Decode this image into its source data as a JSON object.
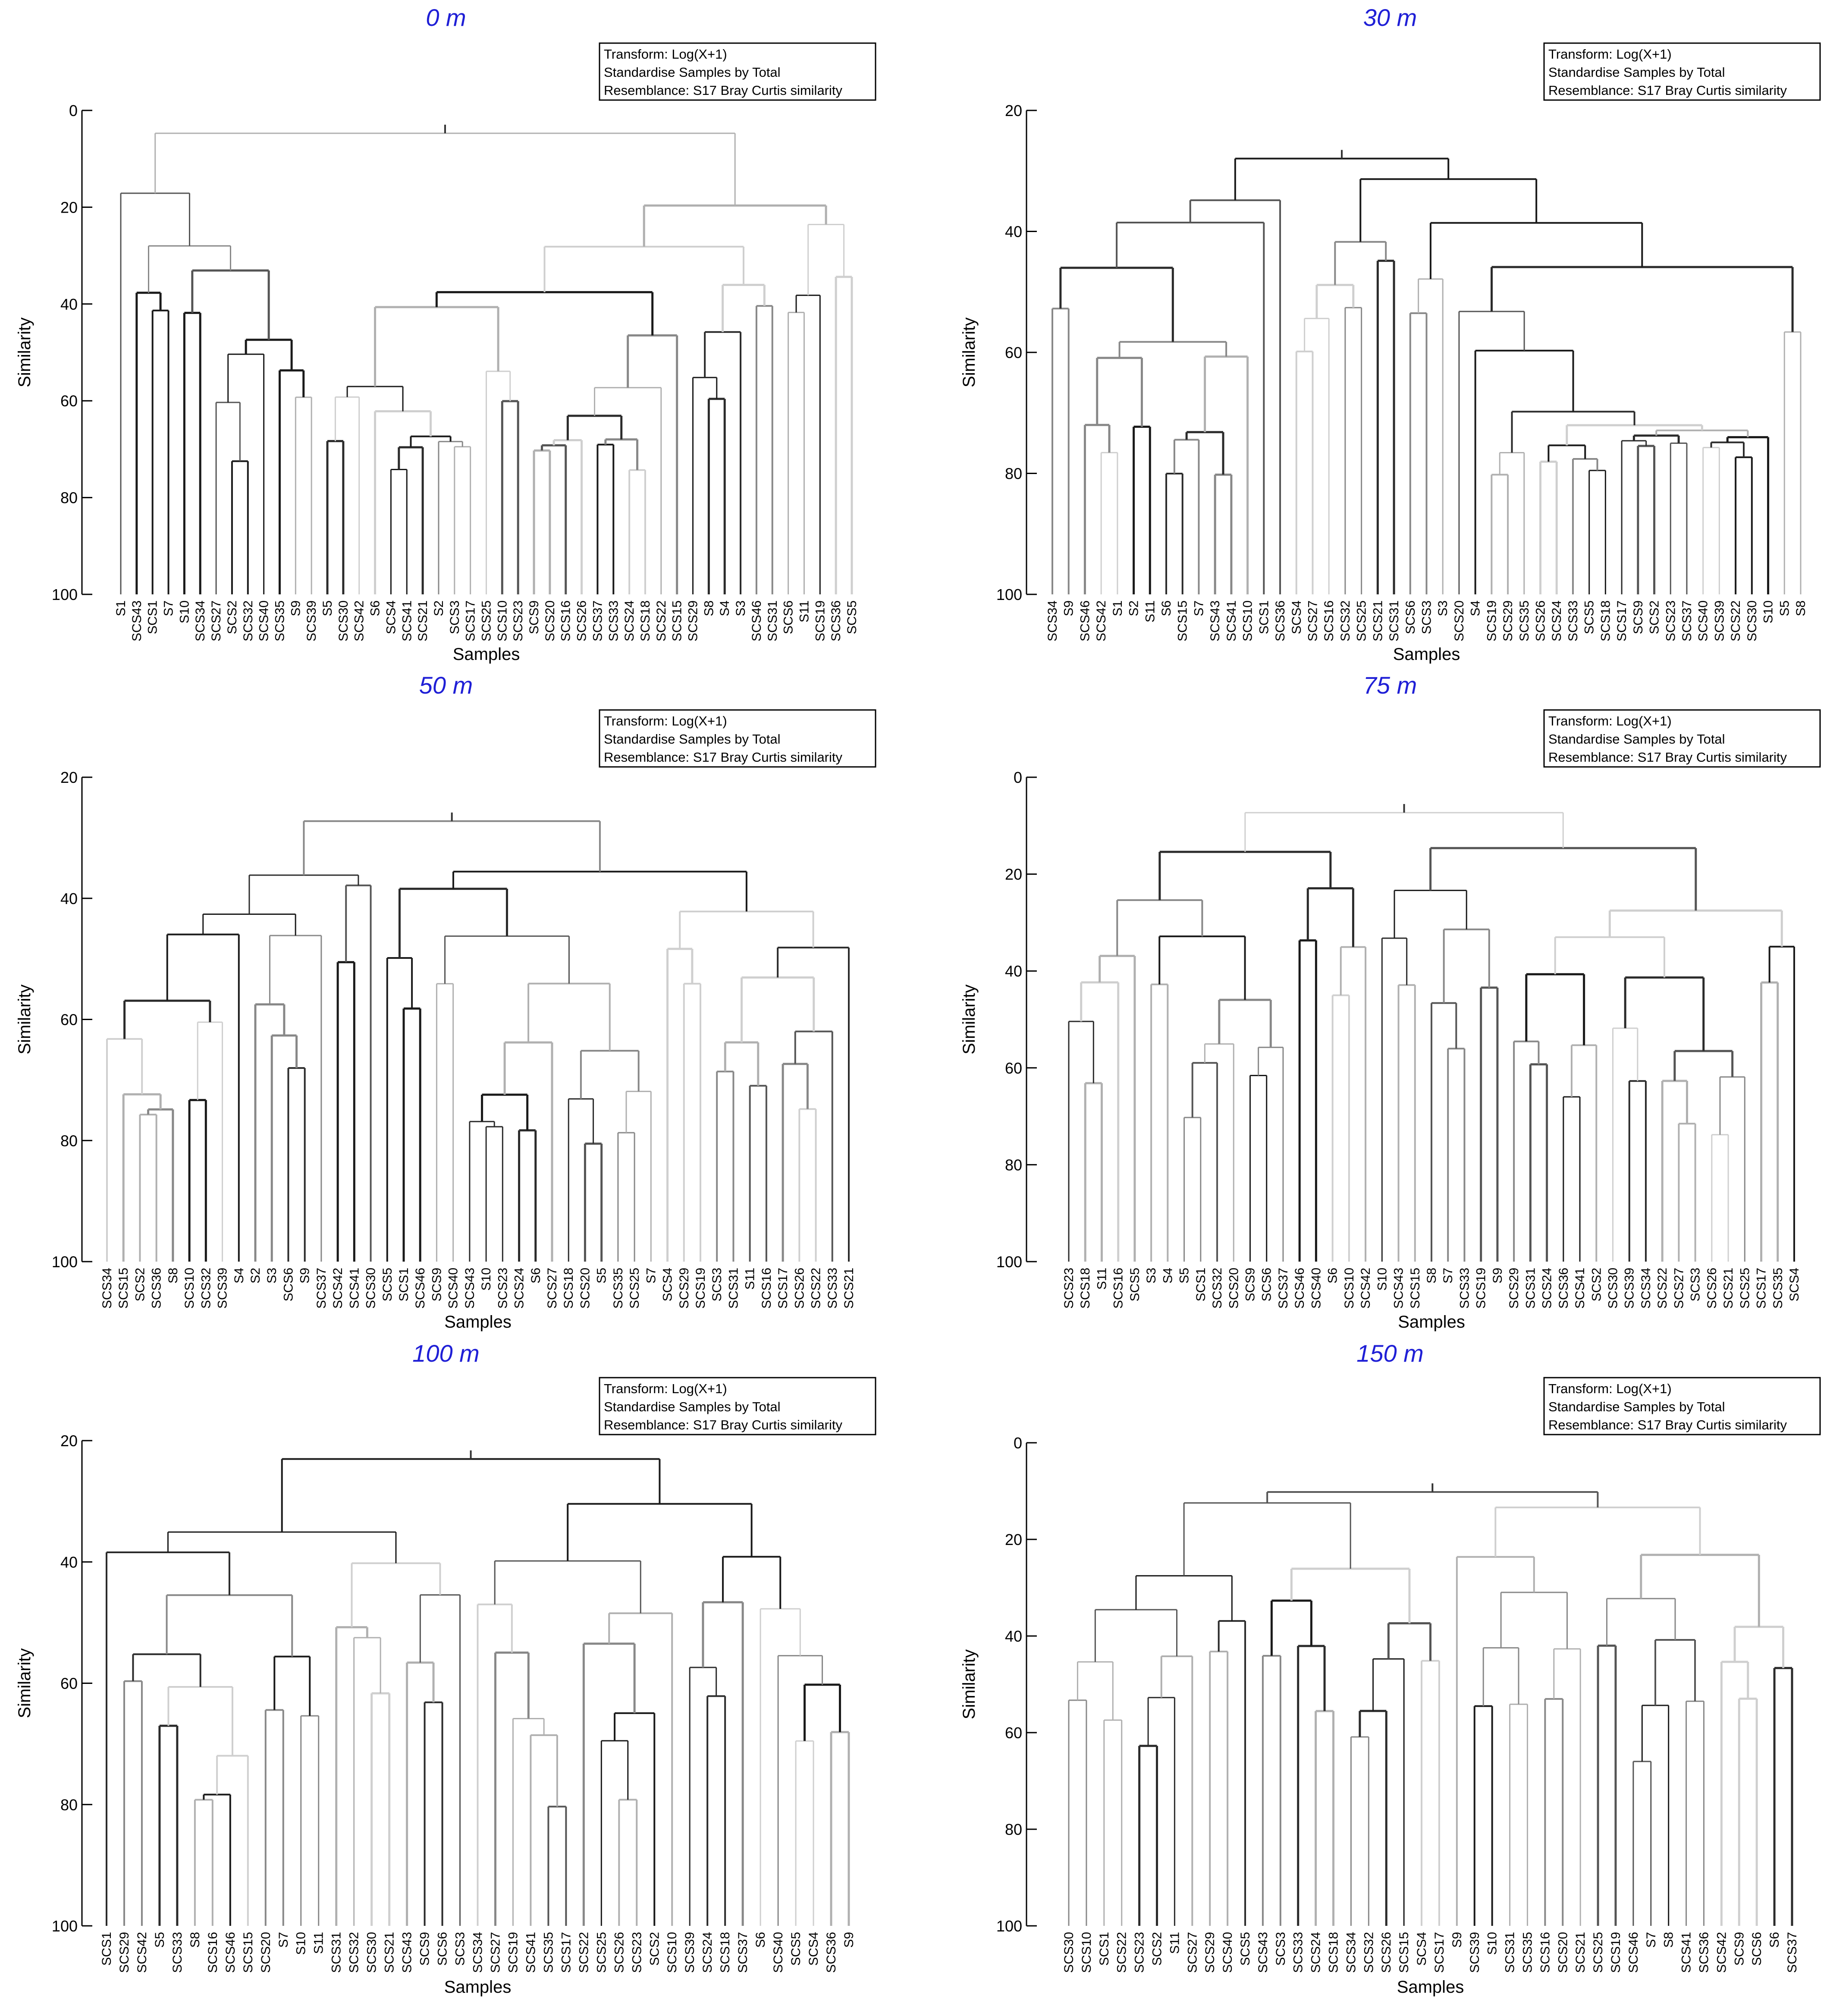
{
  "chart_data": [
    {
      "type": "dendrogram",
      "title": "0 m",
      "ylabel": "Similarity",
      "xlabel": "Samples",
      "ylim": [
        0,
        100
      ],
      "yticks": [
        0,
        20,
        40,
        60,
        80,
        100
      ],
      "info": [
        "Transform: Log(X+1)",
        "Standardise Samples by Total",
        "Resemblance: S17 Bray Curtis similarity"
      ],
      "leaves": [
        "S1",
        "SCS43",
        "SCS1",
        "S7",
        "S10",
        "SCS34",
        "SCS27",
        "SCS2",
        "SCS32",
        "SCS40",
        "SCS35",
        "S9",
        "SCS39",
        "S5",
        "SCS30",
        "SCS42",
        "S6",
        "SCS4",
        "SCS41",
        "SCS21",
        "S2",
        "SCS3",
        "SCS17",
        "SCS25",
        "SCS10",
        "SCS23",
        "SCS9",
        "SCS20",
        "SCS16",
        "SCS26",
        "SCS37",
        "SCS33",
        "SCS24",
        "SCS18",
        "SCS22",
        "SCS15",
        "SCS29",
        "S8",
        "S4",
        "S3",
        "SCS46",
        "SCS31",
        "SCS6",
        "S11",
        "SCS19",
        "SCS36",
        "SCS5"
      ]
    },
    {
      "type": "dendrogram",
      "title": "30 m",
      "ylabel": "Similarity",
      "xlabel": "Samples",
      "ylim": [
        20,
        100
      ],
      "yticks": [
        20,
        40,
        60,
        80,
        100
      ],
      "info": [
        "Transform: Log(X+1)",
        "Standardise Samples by Total",
        "Resemblance: S17 Bray Curtis similarity"
      ],
      "leaves": [
        "SCS34",
        "S9",
        "SCS46",
        "SCS42",
        "S1",
        "S2",
        "S11",
        "S6",
        "SCS15",
        "S7",
        "SCS43",
        "SCS41",
        "SCS10",
        "SCS1",
        "SCS36",
        "SCS4",
        "SCS27",
        "SCS16",
        "SCS32",
        "SCS25",
        "SCS21",
        "SCS31",
        "SCS6",
        "SCS3",
        "S3",
        "SCS20",
        "S4",
        "SCS19",
        "SCS29",
        "SCS35",
        "SCS26",
        "SCS24",
        "SCS33",
        "SCS5",
        "SCS18",
        "SCS17",
        "SCS9",
        "SCS2",
        "SCS23",
        "SCS37",
        "SCS40",
        "SCS39",
        "SCS22",
        "SCS30",
        "S10",
        "S5",
        "S8"
      ]
    },
    {
      "type": "dendrogram",
      "title": "50 m",
      "ylabel": "Similarity",
      "xlabel": "Samples",
      "ylim": [
        20,
        100
      ],
      "yticks": [
        20,
        40,
        60,
        80,
        100
      ],
      "info": [
        "Transform: Log(X+1)",
        "Standardise Samples by Total",
        "Resemblance: S17 Bray Curtis similarity"
      ],
      "leaves": [
        "SCS34",
        "SCS15",
        "SCS2",
        "SCS36",
        "S8",
        "SCS10",
        "SCS32",
        "SCS39",
        "S4",
        "S2",
        "S3",
        "SCS6",
        "S9",
        "SCS37",
        "SCS42",
        "SCS41",
        "SCS30",
        "SCS5",
        "SCS1",
        "SCS46",
        "SCS9",
        "SCS40",
        "SCS43",
        "S10",
        "SCS23",
        "SCS24",
        "S6",
        "SCS27",
        "SCS18",
        "SCS20",
        "S5",
        "SCS35",
        "SCS25",
        "S7",
        "SCS4",
        "SCS29",
        "SCS19",
        "SCS3",
        "SCS31",
        "S11",
        "SCS16",
        "SCS17",
        "SCS26",
        "SCS22",
        "SCS33",
        "SCS21"
      ]
    },
    {
      "type": "dendrogram",
      "title": "75 m",
      "ylabel": "Similarity",
      "xlabel": "Samples",
      "ylim": [
        0,
        100
      ],
      "yticks": [
        0,
        20,
        40,
        60,
        80,
        100
      ],
      "info": [
        "Transform: Log(X+1)",
        "Standardise Samples by Total",
        "Resemblance: S17 Bray Curtis similarity"
      ],
      "leaves": [
        "SCS23",
        "SCS18",
        "S11",
        "SCS16",
        "SCS5",
        "S3",
        "S4",
        "S5",
        "SCS1",
        "SCS32",
        "SCS20",
        "SCS9",
        "SCS6",
        "SCS37",
        "SCS46",
        "SCS40",
        "S6",
        "SCS10",
        "SCS42",
        "S10",
        "SCS43",
        "SCS15",
        "S8",
        "S7",
        "SCS33",
        "SCS19",
        "S9",
        "SCS29",
        "SCS31",
        "SCS24",
        "SCS36",
        "SCS41",
        "SCS2",
        "SCS30",
        "SCS39",
        "SCS34",
        "SCS22",
        "SCS27",
        "SCS3",
        "SCS26",
        "SCS21",
        "SCS25",
        "SCS17",
        "SCS35",
        "SCS4"
      ]
    },
    {
      "type": "dendrogram",
      "title": "100 m",
      "ylabel": "Similarity",
      "xlabel": "Samples",
      "ylim": [
        20,
        100
      ],
      "yticks": [
        20,
        40,
        60,
        80,
        100
      ],
      "info": [
        "Transform: Log(X+1)",
        "Standardise Samples by Total",
        "Resemblance: S17 Bray Curtis similarity"
      ],
      "leaves": [
        "SCS1",
        "SCS29",
        "SCS42",
        "S5",
        "SCS33",
        "S8",
        "SCS16",
        "SCS46",
        "SCS15",
        "SCS20",
        "S7",
        "S10",
        "S11",
        "SCS31",
        "SCS32",
        "SCS30",
        "SCS21",
        "SCS43",
        "SCS9",
        "SCS6",
        "SCS3",
        "SCS34",
        "SCS27",
        "SCS19",
        "SCS41",
        "SCS35",
        "SCS17",
        "SCS22",
        "SCS25",
        "SCS26",
        "SCS23",
        "SCS2",
        "SCS10",
        "SCS39",
        "SCS24",
        "SCS18",
        "SCS37",
        "S6",
        "SCS40",
        "SCS5",
        "SCS4",
        "SCS36",
        "S9"
      ]
    },
    {
      "type": "dendrogram",
      "title": "150 m",
      "ylabel": "Similarity",
      "xlabel": "Samples",
      "ylim": [
        0,
        100
      ],
      "yticks": [
        0,
        20,
        40,
        60,
        80,
        100
      ],
      "info": [
        "Transform: Log(X+1)",
        "Standardise Samples by Total",
        "Resemblance: S17 Bray Curtis similarity"
      ],
      "leaves": [
        "SCS30",
        "SCS10",
        "SCS1",
        "SCS22",
        "SCS23",
        "SCS2",
        "S11",
        "SCS27",
        "SCS29",
        "SCS40",
        "SCS5",
        "SCS43",
        "SCS3",
        "SCS33",
        "SCS24",
        "SCS18",
        "SCS34",
        "SCS32",
        "SCS26",
        "SCS15",
        "SCS4",
        "SCS17",
        "S9",
        "SCS39",
        "S10",
        "SCS31",
        "SCS35",
        "SCS16",
        "SCS20",
        "SCS21",
        "SCS25",
        "SCS19",
        "SCS46",
        "S7",
        "S8",
        "SCS41",
        "SCS36",
        "SCS42",
        "SCS9",
        "SCS6",
        "S6",
        "SCS37"
      ]
    }
  ]
}
